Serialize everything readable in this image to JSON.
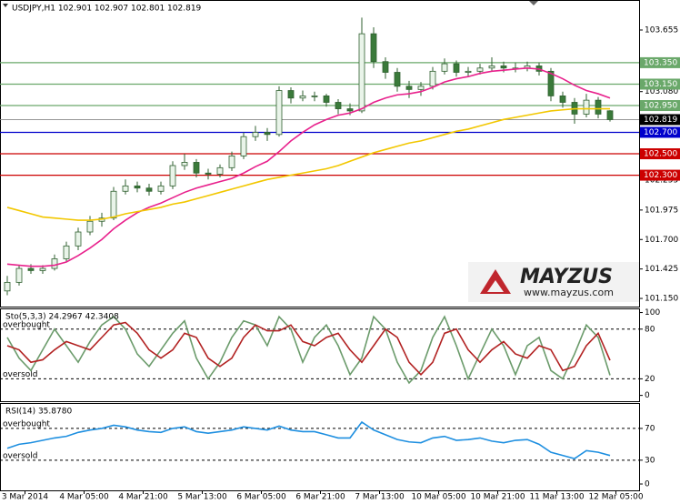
{
  "chart_data": [
    {
      "type": "candlestick",
      "title": "USDJPY,H1  102.901 102.907 102.801 102.819",
      "ylim": [
        101.074,
        103.935
      ],
      "yticks": [
        103.655,
        {
          "value": 103.08,
          "label": "103.080"
        },
        102.255,
        101.975,
        {
          "value": 101.7,
          "label": "101.700"
        },
        101.425,
        {
          "value": 101.15,
          "label": "101.150"
        }
      ],
      "xticks": [
        {
          "value": 1.5,
          "label": "3 Mar 2014"
        },
        {
          "value": 6.5,
          "label": "4 Mar 05:00"
        },
        {
          "value": 11.5,
          "label": "4 Mar 21:00"
        },
        {
          "value": 16.5,
          "label": "5 Mar 13:00"
        },
        {
          "value": 21.5,
          "label": "6 Mar 05:00"
        },
        {
          "value": 26.5,
          "label": "6 Mar 21:00"
        },
        {
          "value": 31.5,
          "label": "7 Mar 13:00"
        },
        {
          "value": 36.5,
          "label": "10 Mar 05:00"
        },
        {
          "value": 41.5,
          "label": "10 Mar 21:00"
        },
        {
          "value": 46.5,
          "label": "11 Mar 13:00"
        },
        {
          "value": 51.5,
          "label": "12 Mar 05:00"
        }
      ],
      "up_color": "#e9f4e9",
      "down_color": "#3a7a3a",
      "wick_color": "#2f5f2f",
      "candles": [
        [
          101.22,
          101.36,
          101.18,
          101.3
        ],
        [
          101.3,
          101.46,
          101.27,
          101.43
        ],
        [
          101.43,
          101.47,
          101.38,
          101.41
        ],
        [
          101.41,
          101.46,
          101.38,
          101.43
        ],
        [
          101.43,
          101.56,
          101.41,
          101.52
        ],
        [
          101.52,
          101.68,
          101.49,
          101.64
        ],
        [
          101.64,
          101.81,
          101.6,
          101.77
        ],
        [
          101.77,
          101.92,
          101.74,
          101.87
        ],
        [
          101.87,
          101.95,
          101.82,
          101.9
        ],
        [
          101.9,
          102.19,
          101.88,
          102.15
        ],
        [
          102.15,
          102.26,
          102.12,
          102.2
        ],
        [
          102.2,
          102.24,
          102.14,
          102.18
        ],
        [
          102.18,
          102.22,
          102.11,
          102.15
        ],
        [
          102.15,
          102.24,
          102.12,
          102.2
        ],
        [
          102.2,
          102.43,
          102.17,
          102.39
        ],
        [
          102.39,
          102.5,
          102.35,
          102.42
        ],
        [
          102.42,
          102.45,
          102.28,
          102.32
        ],
        [
          102.32,
          102.36,
          102.26,
          102.31
        ],
        [
          102.31,
          102.4,
          102.28,
          102.37
        ],
        [
          102.37,
          102.52,
          102.34,
          102.48
        ],
        [
          102.48,
          102.7,
          102.45,
          102.66
        ],
        [
          102.66,
          102.76,
          102.62,
          102.7
        ],
        [
          102.7,
          102.74,
          102.62,
          102.68
        ],
        [
          102.68,
          103.13,
          102.66,
          103.09
        ],
        [
          103.09,
          103.12,
          102.97,
          103.02
        ],
        [
          103.02,
          103.09,
          102.99,
          103.04
        ],
        [
          103.04,
          103.08,
          102.99,
          103.04
        ],
        [
          103.04,
          103.06,
          102.94,
          102.98
        ],
        [
          102.98,
          103.01,
          102.87,
          102.92
        ],
        [
          102.92,
          102.97,
          102.86,
          102.9
        ],
        [
          102.9,
          103.77,
          102.88,
          103.62
        ],
        [
          103.62,
          103.68,
          103.3,
          103.36
        ],
        [
          103.36,
          103.4,
          103.2,
          103.26
        ],
        [
          103.26,
          103.3,
          103.08,
          103.13
        ],
        [
          103.13,
          103.18,
          103.02,
          103.1
        ],
        [
          103.1,
          103.17,
          103.04,
          103.13
        ],
        [
          103.13,
          103.31,
          103.1,
          103.27
        ],
        [
          103.27,
          103.39,
          103.24,
          103.34
        ],
        [
          103.34,
          103.37,
          103.22,
          103.26
        ],
        [
          103.26,
          103.31,
          103.22,
          103.27
        ],
        [
          103.27,
          103.34,
          103.24,
          103.3
        ],
        [
          103.3,
          103.4,
          103.27,
          103.32
        ],
        [
          103.32,
          103.36,
          103.26,
          103.3
        ],
        [
          103.3,
          103.35,
          103.26,
          103.3
        ],
        [
          103.3,
          103.36,
          103.27,
          103.32
        ],
        [
          103.32,
          103.35,
          103.23,
          103.27
        ],
        [
          103.27,
          103.3,
          102.99,
          103.04
        ],
        [
          103.04,
          103.08,
          102.93,
          102.98
        ],
        [
          102.98,
          103.02,
          102.78,
          102.87
        ],
        [
          102.87,
          103.06,
          102.84,
          103.0
        ],
        [
          103.0,
          103.03,
          102.83,
          102.87
        ],
        [
          102.901,
          102.907,
          102.801,
          102.819
        ]
      ],
      "series": [
        {
          "color": "#e8218c",
          "values": [
            101.47,
            101.46,
            101.45,
            101.45,
            101.46,
            101.49,
            101.55,
            101.62,
            101.7,
            101.8,
            101.88,
            101.95,
            102.0,
            102.04,
            102.09,
            102.14,
            102.18,
            102.21,
            102.24,
            102.27,
            102.32,
            102.38,
            102.43,
            102.52,
            102.62,
            102.7,
            102.77,
            102.82,
            102.86,
            102.88,
            102.92,
            102.98,
            103.02,
            103.05,
            103.06,
            103.08,
            103.12,
            103.17,
            103.2,
            103.22,
            103.25,
            103.27,
            103.28,
            103.29,
            103.3,
            103.29,
            103.25,
            103.2,
            103.14,
            103.09,
            103.06,
            103.02
          ]
        },
        {
          "color": "#f2c700",
          "values": [
            102.0,
            101.97,
            101.94,
            101.91,
            101.9,
            101.89,
            101.88,
            101.88,
            101.89,
            101.91,
            101.94,
            101.96,
            101.98,
            102.0,
            102.03,
            102.05,
            102.08,
            102.11,
            102.14,
            102.17,
            102.2,
            102.23,
            102.26,
            102.28,
            102.3,
            102.32,
            102.34,
            102.36,
            102.39,
            102.43,
            102.47,
            102.51,
            102.54,
            102.57,
            102.6,
            102.62,
            102.65,
            102.68,
            102.71,
            102.73,
            102.76,
            102.79,
            102.82,
            102.84,
            102.86,
            102.88,
            102.9,
            102.91,
            102.92,
            102.92,
            102.92,
            102.92
          ]
        }
      ],
      "levels": [
        {
          "value": 103.35,
          "label": "103.350",
          "color": "#6aa86a"
        },
        {
          "value": 103.15,
          "label": "103.150",
          "color": "#6aa86a"
        },
        {
          "value": 102.95,
          "label": "102.950",
          "color": "#6aa86a"
        },
        {
          "value": 102.7,
          "label": "102.700",
          "color": "#0000cc"
        },
        {
          "value": 102.5,
          "label": "102.500",
          "color": "#cc0000"
        },
        {
          "value": 102.3,
          "label": "102.300",
          "color": "#cc0000"
        }
      ],
      "last_price": 102.819
    },
    {
      "type": "line",
      "title": "Sto(5,3,3) 24.2967 42.3408",
      "ylim": [
        -7,
        105
      ],
      "yticks": [
        100,
        80,
        20,
        0
      ],
      "levels": [
        {
          "value": 80,
          "label": "overbought"
        },
        {
          "value": 20,
          "label": "oversold"
        }
      ],
      "series": [
        {
          "color": "#6b9b6b",
          "values": [
            70,
            45,
            30,
            55,
            80,
            60,
            40,
            65,
            85,
            95,
            80,
            50,
            35,
            55,
            75,
            90,
            45,
            20,
            40,
            70,
            90,
            85,
            60,
            95,
            80,
            40,
            70,
            85,
            60,
            25,
            45,
            95,
            80,
            40,
            15,
            30,
            70,
            95,
            60,
            20,
            50,
            80,
            60,
            25,
            60,
            70,
            30,
            20,
            50,
            85,
            70,
            24.3
          ]
        },
        {
          "color": "#b22222",
          "values": [
            60,
            55,
            40,
            43,
            55,
            65,
            60,
            55,
            70,
            85,
            88,
            75,
            55,
            45,
            55,
            75,
            70,
            45,
            35,
            45,
            70,
            85,
            78,
            78,
            85,
            65,
            60,
            70,
            75,
            55,
            40,
            60,
            80,
            70,
            40,
            25,
            40,
            75,
            80,
            55,
            40,
            55,
            65,
            50,
            45,
            60,
            55,
            30,
            35,
            60,
            75,
            42.34
          ]
        }
      ]
    },
    {
      "type": "line",
      "title": "RSI(14) 35.8780",
      "ylim": [
        -8,
        102
      ],
      "yticks": [
        70,
        30,
        0
      ],
      "levels": [
        {
          "value": 70,
          "label": "overbought"
        },
        {
          "value": 30,
          "label": "oversold"
        }
      ],
      "series": [
        {
          "color": "#1e8fe0",
          "values": [
            45,
            50,
            52,
            55,
            58,
            60,
            65,
            68,
            70,
            74,
            72,
            68,
            66,
            65,
            70,
            72,
            66,
            64,
            66,
            68,
            72,
            70,
            68,
            73,
            68,
            66,
            66,
            62,
            58,
            58,
            78,
            68,
            62,
            56,
            53,
            52,
            58,
            60,
            55,
            56,
            58,
            54,
            52,
            55,
            56,
            50,
            40,
            36,
            32,
            42,
            40,
            35.88
          ]
        }
      ]
    }
  ],
  "logo": {
    "name": "MAYZUS",
    "url": "www.mayzus.com"
  }
}
